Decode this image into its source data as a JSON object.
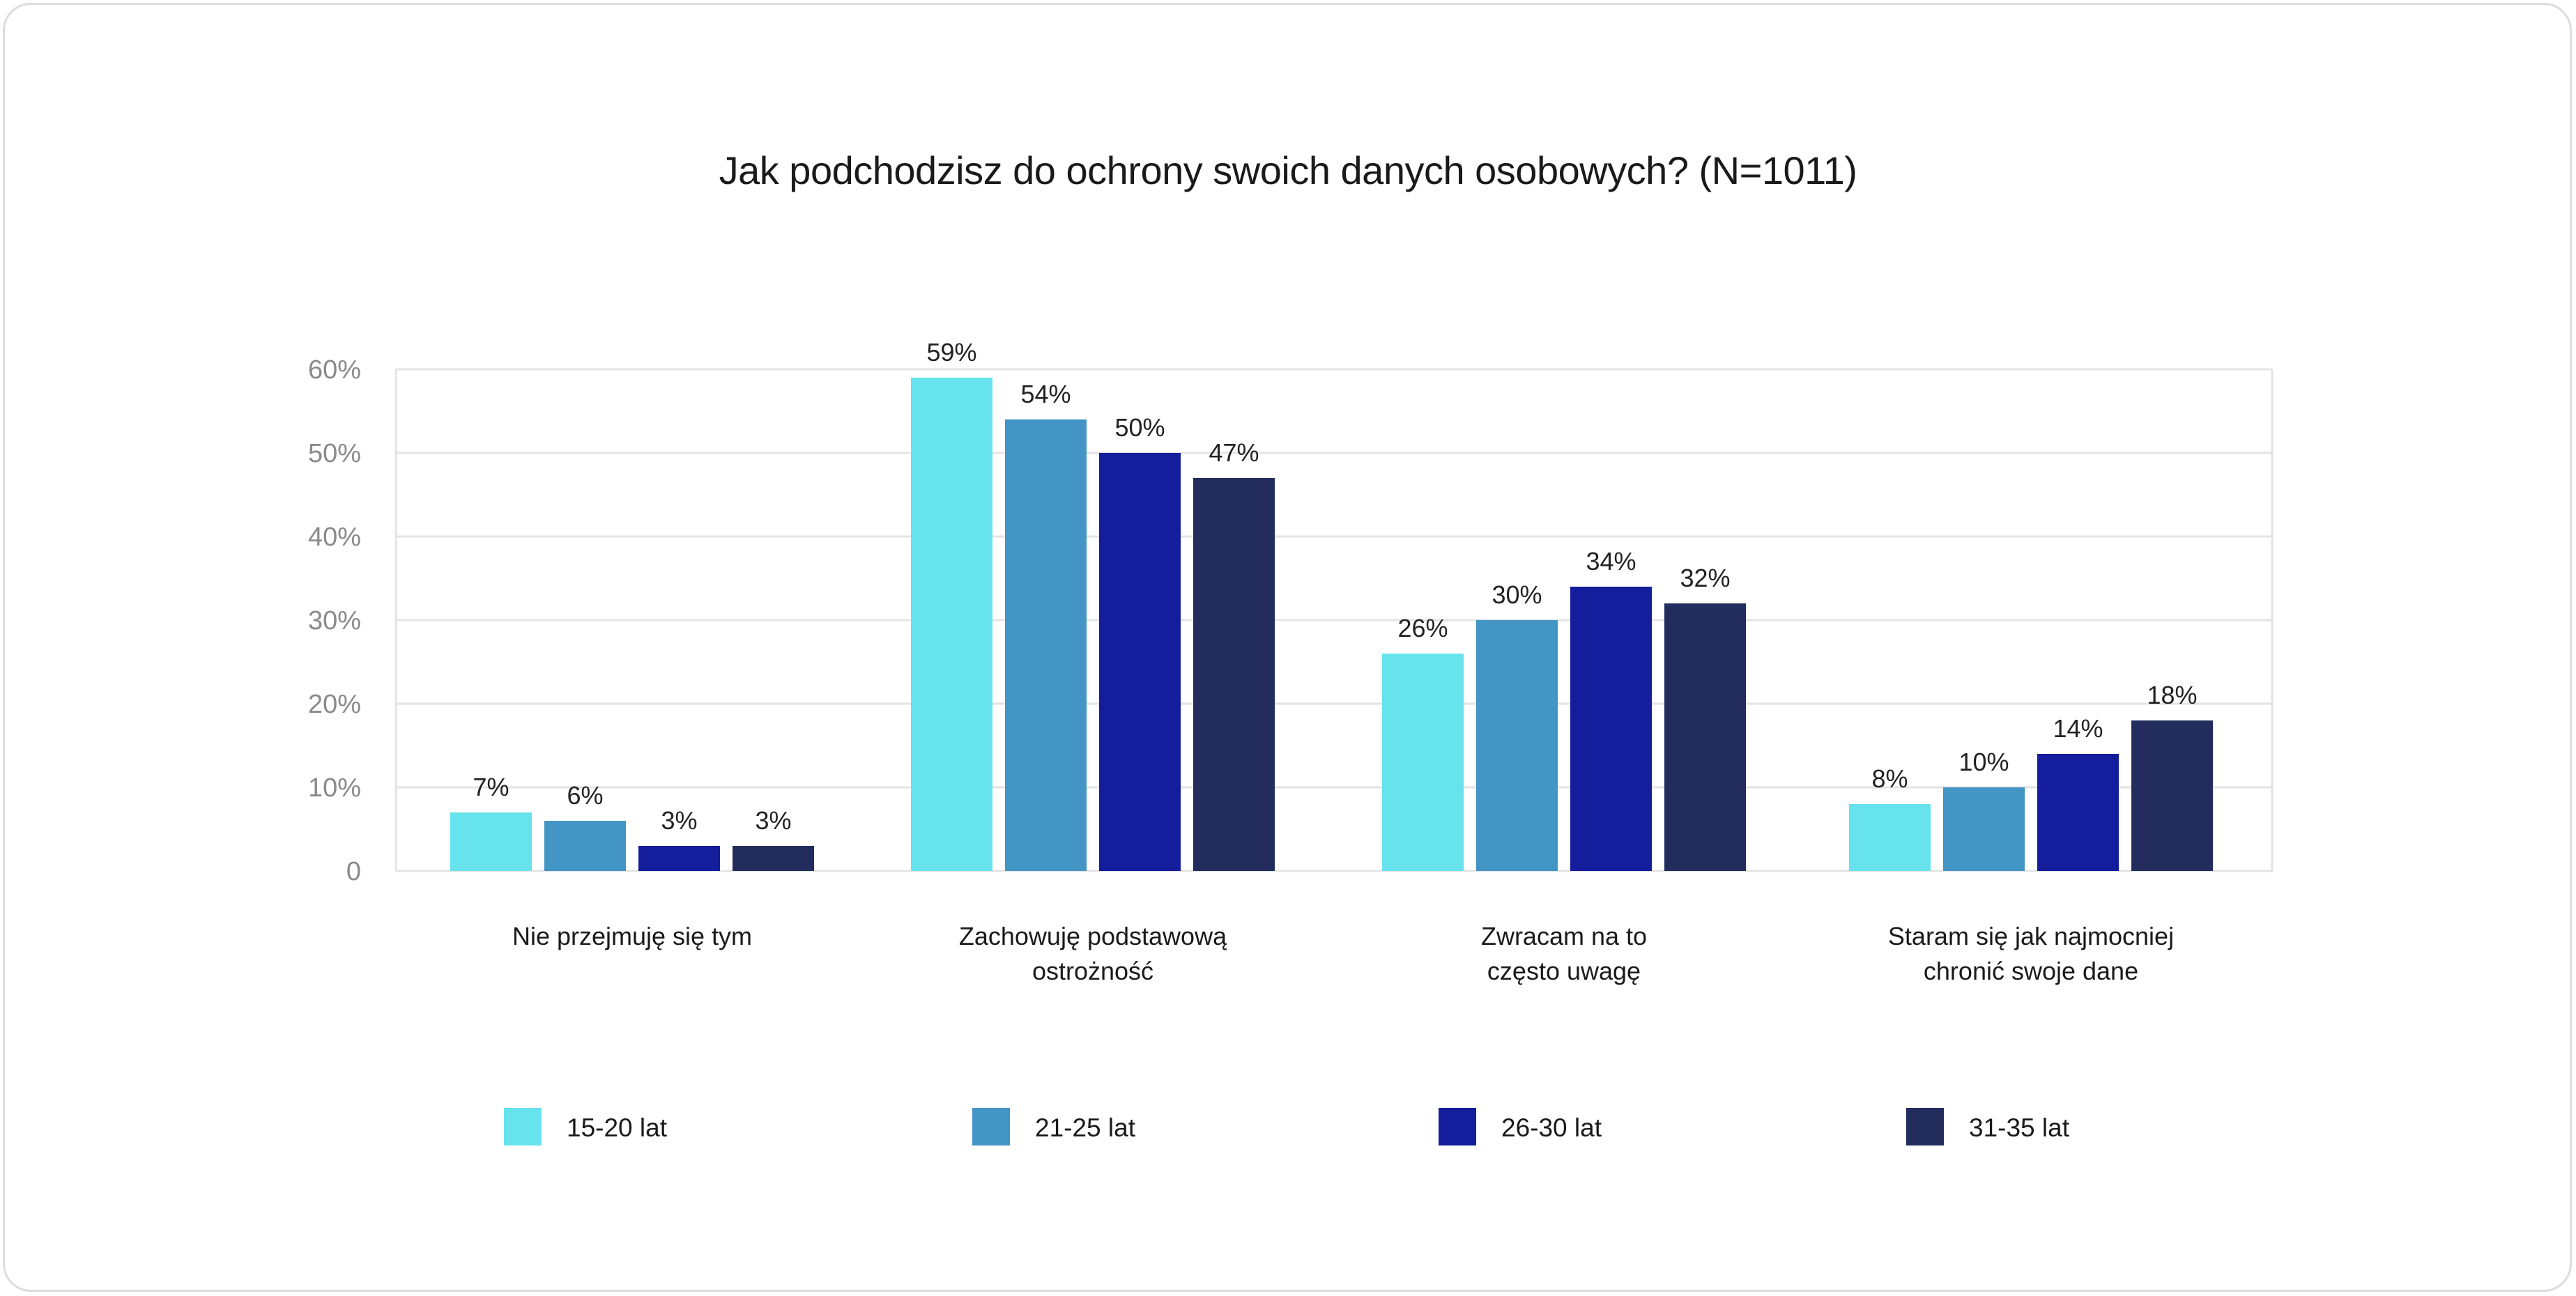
{
  "chart_data": {
    "type": "bar",
    "title": "Jak podchodzisz do ochrony swoich danych osobowych? (N=1011)",
    "xlabel": "",
    "ylabel": "",
    "ylim": [
      0,
      60
    ],
    "yticks": [
      0,
      10,
      20,
      30,
      40,
      50,
      60
    ],
    "ytick_labels": [
      "0",
      "10%",
      "20%",
      "30%",
      "40%",
      "50%",
      "60%"
    ],
    "grid": true,
    "legend_position": "bottom",
    "categories": [
      [
        "Nie przejmuję się tym"
      ],
      [
        "Zachowuję podstawową",
        "ostrożność"
      ],
      [
        "Zwracam na to",
        "często uwagę"
      ],
      [
        "Staram się jak najmocniej",
        "chronić swoje dane"
      ]
    ],
    "series": [
      {
        "name": "15-20 lat",
        "color": "#66e3ec",
        "values": [
          7,
          59,
          26,
          8
        ],
        "labels": [
          "7%",
          "59%",
          "26%",
          "8%"
        ]
      },
      {
        "name": "21-25 lat",
        "color": "#4395c6",
        "values": [
          6,
          54,
          30,
          10
        ],
        "labels": [
          "6%",
          "54%",
          "30%",
          "10%"
        ]
      },
      {
        "name": "26-30 lat",
        "color": "#141e9c",
        "values": [
          3,
          50,
          34,
          14
        ],
        "labels": [
          "3%",
          "50%",
          "34%",
          "14%"
        ]
      },
      {
        "name": "31-35 lat",
        "color": "#222d5e",
        "values": [
          3,
          47,
          32,
          18
        ],
        "labels": [
          "3%",
          "47%",
          "32%",
          "18%"
        ]
      }
    ]
  }
}
